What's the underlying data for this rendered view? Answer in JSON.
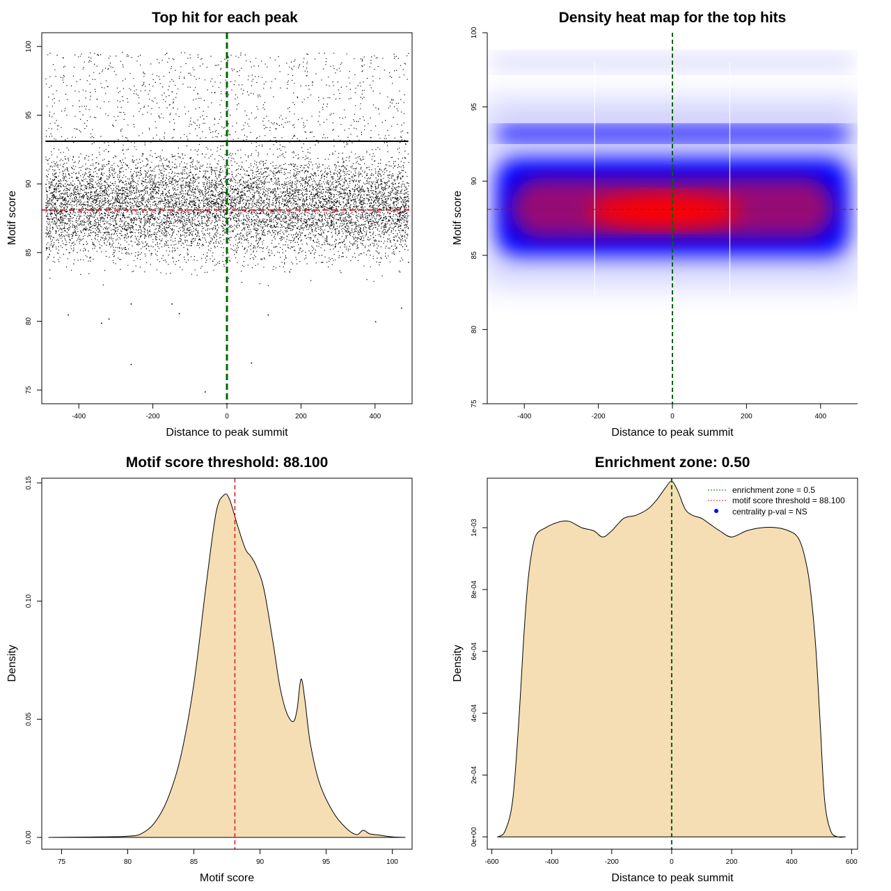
{
  "colors": {
    "zone_line": "#006400",
    "threshold_line": "#e02020",
    "density_fill": "#f5deb3",
    "heat_low": "#0000ff",
    "heat_high": "#ff0000",
    "points": "#000000",
    "legend_point": "#0000ff"
  },
  "chart_data": [
    {
      "type": "scatter",
      "title": "Top hit for each peak",
      "xlabel": "Distance to peak summit",
      "ylabel": "Motif score",
      "xlim": [
        -500,
        500
      ],
      "ylim": [
        74,
        101
      ],
      "xticks": [
        -400,
        -200,
        0,
        200,
        400
      ],
      "xtick_labels": [
        "-400",
        "-200",
        "0",
        "200",
        "400"
      ],
      "yticks": [
        75,
        80,
        85,
        90,
        95,
        100
      ],
      "ytick_labels": [
        "75",
        "80",
        "85",
        "90",
        "95",
        "100"
      ],
      "zone_x": 0,
      "threshold_y": 88.1,
      "dense_band": [
        85,
        93
      ],
      "band_line_y": 93.1,
      "outliers": [
        [
          -260,
          76.9
        ],
        [
          -60,
          74.9
        ],
        [
          65,
          77.0
        ],
        [
          -430,
          80.5
        ],
        [
          -340,
          79.9
        ],
        [
          -320,
          80.2
        ],
        [
          -130,
          80.6
        ],
        [
          110,
          80.5
        ],
        [
          400,
          80.0
        ],
        [
          -260,
          81.3
        ],
        [
          -150,
          81.3
        ],
        [
          470,
          81.0
        ]
      ]
    },
    {
      "type": "heatmap",
      "title": "Density heat map for the top hits",
      "xlabel": "Distance to peak summit",
      "ylabel": "Motif score",
      "xlim": [
        -500,
        500
      ],
      "ylim": [
        75,
        100
      ],
      "xticks": [
        -400,
        -200,
        0,
        200,
        400
      ],
      "xtick_labels": [
        "-400",
        "-200",
        "0",
        "200",
        "400"
      ],
      "yticks": [
        75,
        80,
        85,
        90,
        95,
        100
      ],
      "ytick_labels": [
        "75",
        "80",
        "85",
        "90",
        "95",
        "100"
      ],
      "zone_x": 0,
      "threshold_y": 88.1,
      "hot_center": [
        -20,
        88
      ],
      "blue_band": [
        85,
        91.5
      ],
      "upper_band_y": 93.2,
      "vertical_rule_x": [
        -210,
        155
      ]
    },
    {
      "type": "area",
      "title": "Motif score threshold: 88.100",
      "xlabel": "Motif score",
      "ylabel": "Density",
      "xlim": [
        73.5,
        101.5
      ],
      "ylim": [
        -0.005,
        0.152
      ],
      "xticks": [
        75,
        80,
        85,
        90,
        95,
        100
      ],
      "xtick_labels": [
        "75",
        "80",
        "85",
        "90",
        "95",
        "100"
      ],
      "yticks": [
        0.0,
        0.05,
        0.1,
        0.15
      ],
      "ytick_labels": [
        "0.00",
        "0.05",
        "0.10",
        "0.15"
      ],
      "threshold_x": 88.1,
      "x": [
        74,
        78,
        80,
        81,
        82,
        83,
        84,
        85,
        86,
        86.7,
        87.3,
        87.7,
        88.3,
        88.9,
        89.3,
        89.7,
        90.3,
        91.0,
        91.5,
        92.0,
        92.5,
        92.8,
        93.1,
        93.4,
        93.8,
        94.5,
        95.5,
        96.5,
        97.3,
        97.8,
        98.3,
        99.0,
        100,
        101
      ],
      "y": [
        0.0,
        0.0002,
        0.0005,
        0.0015,
        0.006,
        0.016,
        0.034,
        0.065,
        0.11,
        0.138,
        0.145,
        0.143,
        0.132,
        0.122,
        0.119,
        0.115,
        0.105,
        0.082,
        0.064,
        0.053,
        0.049,
        0.054,
        0.067,
        0.058,
        0.04,
        0.023,
        0.011,
        0.004,
        0.0012,
        0.003,
        0.0015,
        0.001,
        0.0002,
        0.0
      ]
    },
    {
      "type": "area",
      "title": "Enrichment zone: 0.50",
      "xlabel": "Distance to peak summit",
      "ylabel": "Density",
      "xlim": [
        -615,
        620
      ],
      "ylim": [
        -4e-05,
        0.00116
      ],
      "xticks": [
        -600,
        -400,
        -200,
        0,
        200,
        400,
        600
      ],
      "xtick_labels": [
        "-600",
        "-400",
        "-200",
        "0",
        "200",
        "400",
        "600"
      ],
      "yticks": [
        0,
        0.0002,
        0.0004,
        0.0006,
        0.0008,
        0.001
      ],
      "ytick_labels": [
        "0e+00",
        "2e-04",
        "4e-04",
        "6e-04",
        "8e-04",
        "1e-03"
      ],
      "zone_x": 0,
      "x": [
        -580,
        -555,
        -530,
        -510,
        -495,
        -480,
        -465,
        -450,
        -420,
        -400,
        -370,
        -340,
        -300,
        -260,
        -230,
        -200,
        -160,
        -120,
        -80,
        -50,
        -20,
        0,
        20,
        45,
        70,
        100,
        130,
        160,
        200,
        250,
        300,
        350,
        390,
        420,
        440,
        460,
        480,
        495,
        510,
        530,
        555,
        580
      ],
      "y": [
        0.0,
        2e-05,
        0.00012,
        0.00037,
        0.00062,
        0.00082,
        0.00093,
        0.00098,
        0.001,
        0.00101,
        0.00102,
        0.00102,
        0.001,
        0.00099,
        0.00097,
        0.00099,
        0.00103,
        0.00104,
        0.00106,
        0.00109,
        0.00113,
        0.00115,
        0.00112,
        0.00106,
        0.00104,
        0.00103,
        0.00101,
        0.00099,
        0.00097,
        0.00099,
        0.001,
        0.001,
        0.00099,
        0.00097,
        0.00092,
        0.00082,
        0.00062,
        0.00037,
        0.00012,
        2e-05,
        0.0,
        0.0
      ],
      "legend": [
        {
          "label": "enrichment zone = 0.5",
          "style": "dotted-green"
        },
        {
          "label": "motif score threshold = 88.100",
          "style": "dotted-red"
        },
        {
          "label": "centrality p-val = NS",
          "style": "blue-point"
        }
      ]
    }
  ]
}
